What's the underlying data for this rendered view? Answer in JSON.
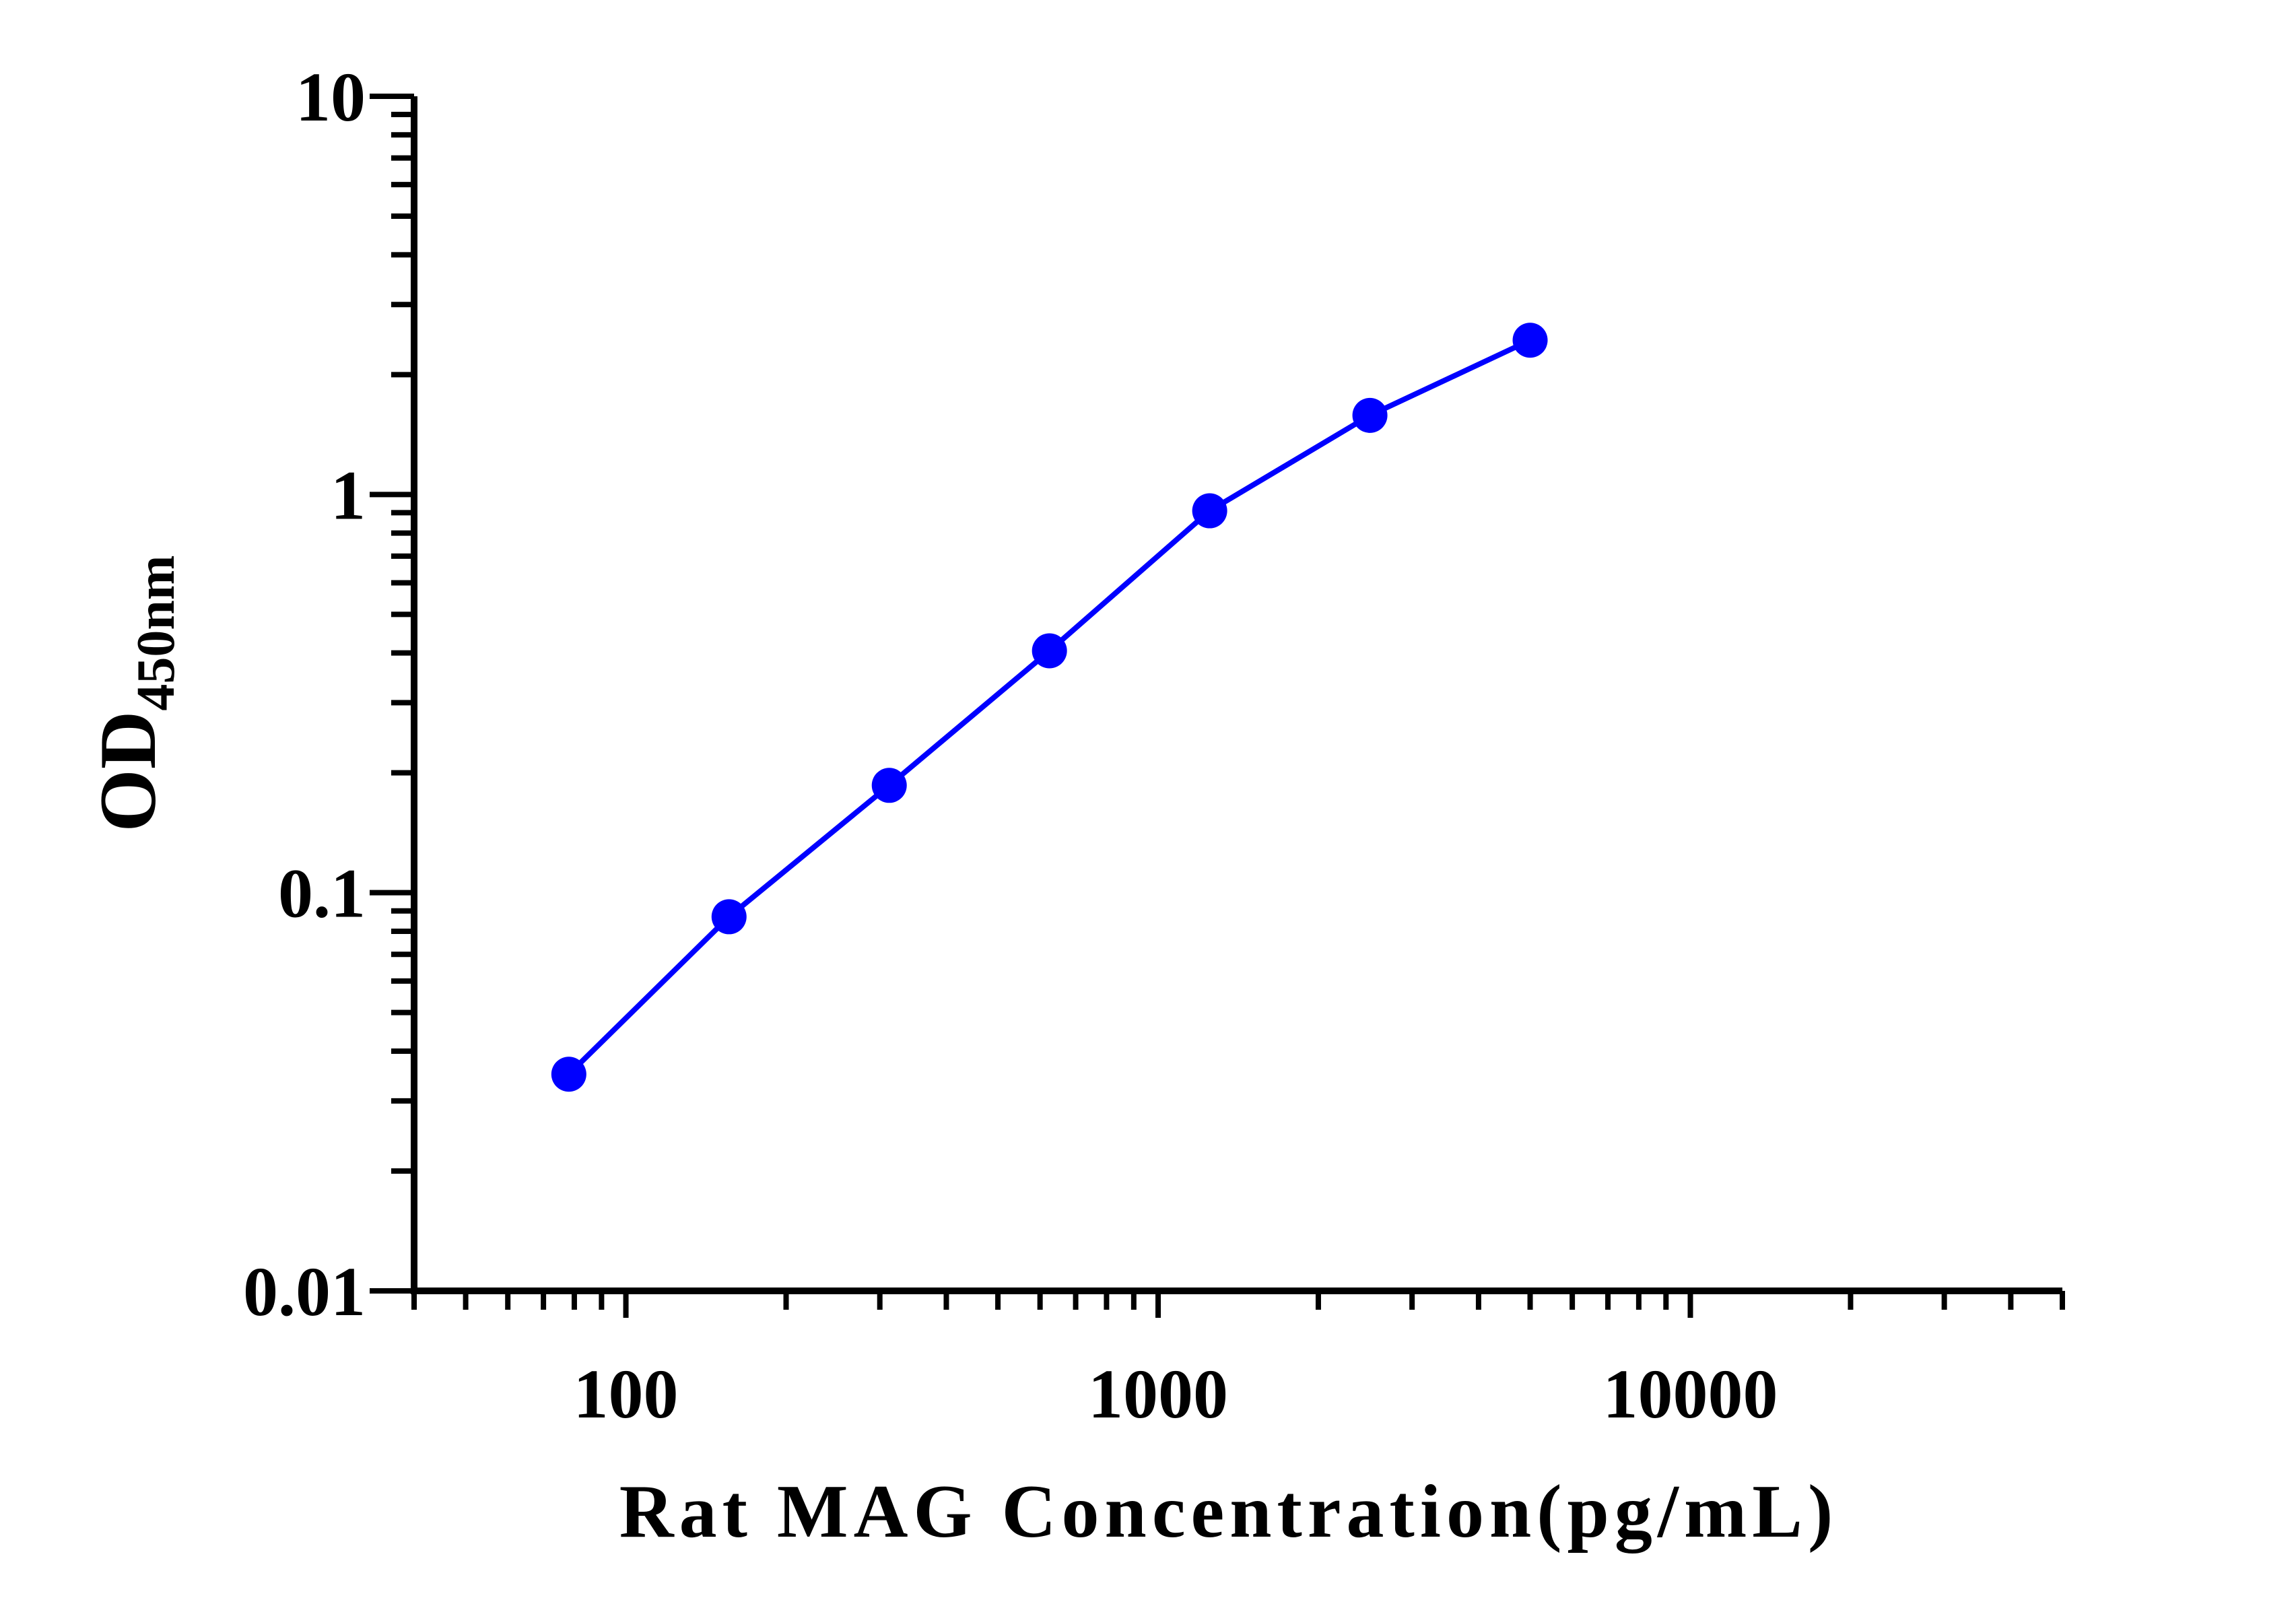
{
  "chart_data": {
    "type": "line",
    "xlabel": "Rat MAG Concentration(pg/mL)",
    "ylabel": "OD",
    "ylabel_subscript": "450nm",
    "x_scale": "log",
    "y_scale": "log",
    "xlim": [
      40,
      50000
    ],
    "ylim": [
      0.01,
      10
    ],
    "x_tick_labels": [
      "100",
      "1000",
      "10000"
    ],
    "y_tick_labels": [
      "10",
      "1",
      "0.1",
      "0.01"
    ],
    "grid": false,
    "legend": "none",
    "series_color": "#0000FF",
    "series": [
      {
        "x": [
          78.13,
          156.25,
          312.5,
          625,
          1250,
          2500,
          5000
        ],
        "y": [
          0.035,
          0.087,
          0.186,
          0.405,
          0.91,
          1.58,
          2.44
        ]
      }
    ]
  }
}
